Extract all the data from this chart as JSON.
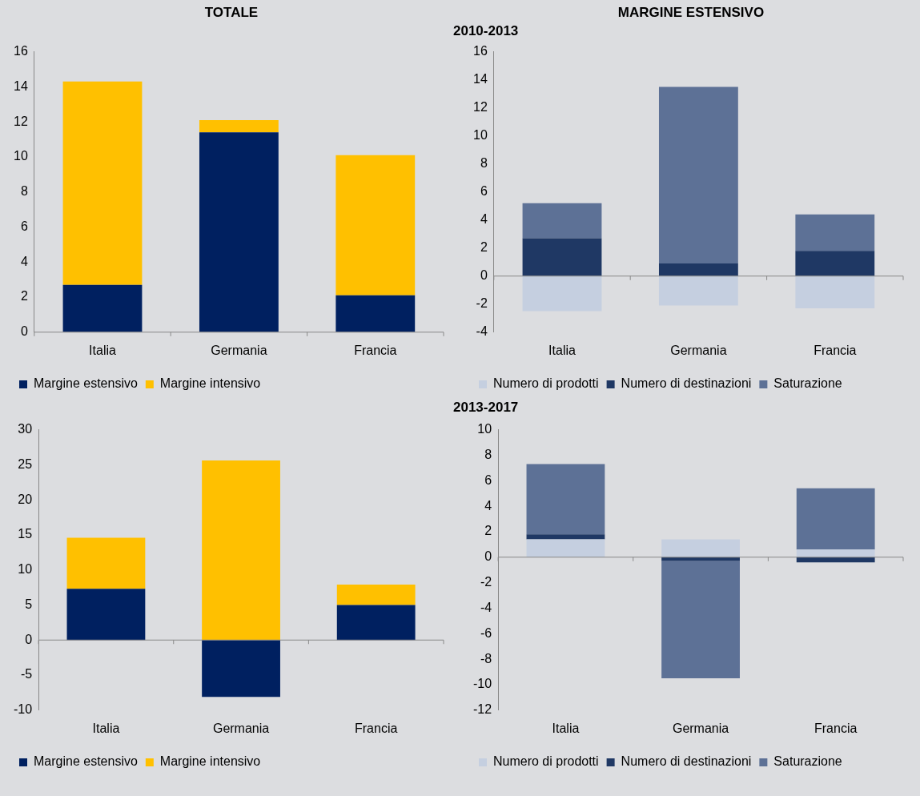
{
  "chart_data": [
    {
      "type": "bar",
      "title": "TOTALE",
      "categories": [
        "Italia",
        "Germania",
        "Francia"
      ],
      "stacked": true,
      "legend": "bottom",
      "ylim": [
        0,
        16
      ],
      "yticks": [
        0,
        2,
        4,
        6,
        8,
        10,
        12,
        14,
        16
      ],
      "series": [
        {
          "name": "Margine estensivo",
          "color": "#002060",
          "values": [
            2.7,
            11.4,
            2.1
          ]
        },
        {
          "name": "Margine intensivo",
          "color": "#ffc000",
          "values": [
            11.6,
            0.7,
            8.0
          ]
        }
      ]
    },
    {
      "type": "bar",
      "title": "MARGINE ESTENSIVO",
      "subtitle": "2010-2013",
      "categories": [
        "Italia",
        "Germania",
        "Francia"
      ],
      "stacked": true,
      "legend": "bottom",
      "ylim": [
        -4,
        16
      ],
      "yticks": [
        -4,
        -2,
        0,
        2,
        4,
        6,
        8,
        10,
        12,
        14,
        16
      ],
      "series": [
        {
          "name": "Numero di prodotti",
          "color": "#c5cfe0",
          "values": [
            -2.5,
            -2.1,
            -2.3
          ]
        },
        {
          "name": "Numero di destinazioni",
          "color": "#1f3864",
          "values": [
            2.7,
            0.9,
            1.8
          ]
        },
        {
          "name": "Saturazione",
          "color": "#5d7196",
          "values": [
            2.5,
            12.6,
            2.6
          ]
        }
      ]
    },
    {
      "type": "bar",
      "categories": [
        "Italia",
        "Germania",
        "Francia"
      ],
      "stacked": true,
      "legend": "bottom",
      "ylim": [
        -10,
        30
      ],
      "yticks": [
        -10,
        -5,
        0,
        5,
        10,
        15,
        20,
        25,
        30
      ],
      "series": [
        {
          "name": "Margine estensivo",
          "color": "#002060",
          "values": [
            7.3,
            -8.1,
            5.0
          ]
        },
        {
          "name": "Margine intensivo",
          "color": "#ffc000",
          "values": [
            7.3,
            25.6,
            2.9
          ]
        }
      ]
    },
    {
      "type": "bar",
      "subtitle": "2013-2017",
      "categories": [
        "Italia",
        "Germania",
        "Francia"
      ],
      "stacked": true,
      "legend": "bottom",
      "ylim": [
        -12,
        10
      ],
      "yticks": [
        -12,
        -10,
        -8,
        -6,
        -4,
        -2,
        0,
        2,
        4,
        6,
        8,
        10
      ],
      "series": [
        {
          "name": "Numero di prodotti",
          "color": "#c5cfe0",
          "values": [
            1.4,
            1.4,
            0.6
          ]
        },
        {
          "name": "Numero di destinazioni",
          "color": "#1f3864",
          "values": [
            0.4,
            -0.3,
            -0.4
          ]
        },
        {
          "name": "Saturazione",
          "color": "#5d7196",
          "values": [
            5.5,
            -9.2,
            4.8
          ]
        }
      ]
    }
  ]
}
